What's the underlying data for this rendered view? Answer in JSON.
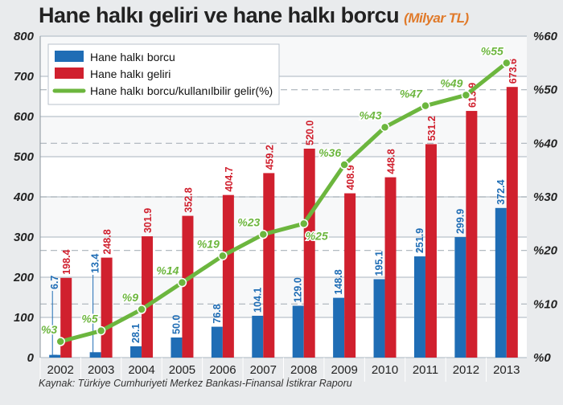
{
  "title": "Hane halkı geliri ve hane halkı borcu",
  "unit": "(Milyar TL)",
  "source": "Kaynak: Türkiye Cumhuriyeti Merkez Bankası-Finansal İstikrar Raporu",
  "colors": {
    "debt": "#1f6db5",
    "income": "#d0202e",
    "ratio": "#6cb63e"
  },
  "chart_data": {
    "type": "bar",
    "title": "Hane halkı geliri ve hane halkı borcu (Milyar TL)",
    "categories": [
      "2002",
      "2003",
      "2004",
      "2005",
      "2006",
      "2007",
      "2008",
      "2009",
      "2010",
      "2011",
      "2012",
      "2013"
    ],
    "series": [
      {
        "name": "Hane halkı borcu",
        "type": "bar",
        "axis": "left",
        "values": [
          6.7,
          13.4,
          28.1,
          50.0,
          76.8,
          104.1,
          129.0,
          148.8,
          195.1,
          251.9,
          299.9,
          372.4
        ],
        "labels": [
          "6.7",
          "13.4",
          "28.1",
          "50.0",
          "76.8",
          "104.1",
          "129.0",
          "148.8",
          "195.1",
          "251.9",
          "299.9",
          "372.4"
        ]
      },
      {
        "name": "Hane halkı geliri",
        "type": "bar",
        "axis": "left",
        "values": [
          198.4,
          248.8,
          301.9,
          352.8,
          404.7,
          459.2,
          520.0,
          408.9,
          448.8,
          531.2,
          613.9,
          673.6
        ],
        "labels": [
          "198.4",
          "248.8",
          "301.9",
          "352.8",
          "404.7",
          "459.2",
          "520.0",
          "408.9",
          "448.8",
          "531.2",
          "613.9",
          "673.6"
        ]
      },
      {
        "name": "Hane halkı borcu/kullanılbilir gelir(%)",
        "type": "line",
        "axis": "right",
        "values": [
          3,
          5,
          9,
          14,
          19,
          23,
          25,
          36,
          43,
          47,
          49,
          55
        ],
        "labels": [
          "%3",
          "%5",
          "%9",
          "%14",
          "%19",
          "%23",
          "%25",
          "%36",
          "%43",
          "%47",
          "%49",
          "%55"
        ]
      }
    ],
    "ylim": [
      0,
      800
    ],
    "y2lim": [
      0,
      60
    ],
    "yticks": [
      "0",
      "100",
      "200",
      "300",
      "400",
      "500",
      "600",
      "700",
      "800"
    ],
    "y2ticks": [
      "%0",
      "%10",
      "%20",
      "%30",
      "%40",
      "%50",
      "%60"
    ],
    "legend": "top-left",
    "grid": true
  }
}
